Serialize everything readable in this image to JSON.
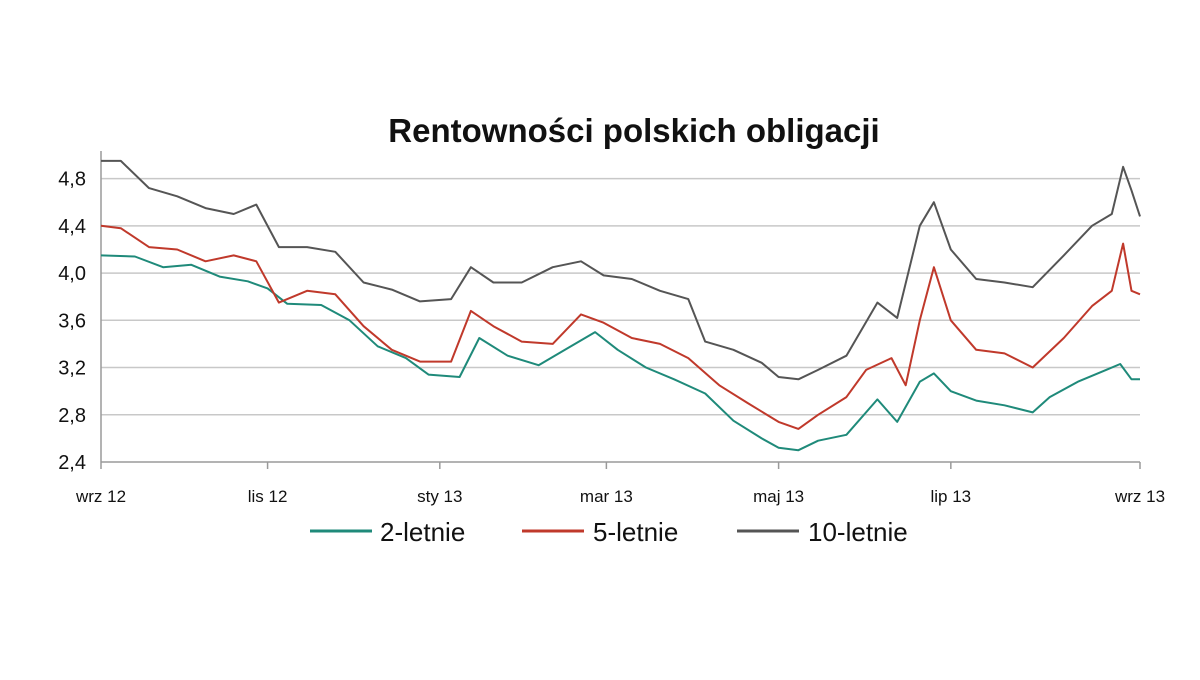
{
  "chart_data": {
    "type": "line",
    "title": "Rentowności polskich obligacji",
    "xlabel": "",
    "ylabel": "",
    "ylim": [
      2.4,
      5.0
    ],
    "yticks": [
      "2,4",
      "2,8",
      "3,2",
      "3,6",
      "4,0",
      "4,4",
      "4,8"
    ],
    "ytick_values": [
      2.4,
      2.8,
      3.2,
      3.6,
      4.0,
      4.4,
      4.8
    ],
    "xlim": [
      "2012-09-03",
      "2013-09-06"
    ],
    "xticks": [
      {
        "label": "wrz 12",
        "date": "2012-09-03"
      },
      {
        "label": "lis 12",
        "date": "2012-11-01"
      },
      {
        "label": "sty 13",
        "date": "2013-01-01"
      },
      {
        "label": "mar 13",
        "date": "2013-03-01"
      },
      {
        "label": "maj 13",
        "date": "2013-05-01"
      },
      {
        "label": "lip 13",
        "date": "2013-07-01"
      },
      {
        "label": "wrz 13",
        "date": "2013-09-06"
      }
    ],
    "grid": true,
    "legend_position": "bottom",
    "series": [
      {
        "name": "2-letnie",
        "color": "#1f8a7a",
        "points": [
          [
            "2012-09-03",
            4.15
          ],
          [
            "2012-09-15",
            4.14
          ],
          [
            "2012-09-25",
            4.05
          ],
          [
            "2012-10-05",
            4.07
          ],
          [
            "2012-10-15",
            3.97
          ],
          [
            "2012-10-25",
            3.93
          ],
          [
            "2012-11-01",
            3.87
          ],
          [
            "2012-11-08",
            3.74
          ],
          [
            "2012-11-20",
            3.73
          ],
          [
            "2012-11-30",
            3.6
          ],
          [
            "2012-12-10",
            3.38
          ],
          [
            "2012-12-20",
            3.28
          ],
          [
            "2012-12-28",
            3.14
          ],
          [
            "2013-01-08",
            3.12
          ],
          [
            "2013-01-15",
            3.45
          ],
          [
            "2013-01-25",
            3.3
          ],
          [
            "2013-02-05",
            3.22
          ],
          [
            "2013-02-15",
            3.36
          ],
          [
            "2013-02-25",
            3.5
          ],
          [
            "2013-03-05",
            3.35
          ],
          [
            "2013-03-15",
            3.2
          ],
          [
            "2013-03-25",
            3.1
          ],
          [
            "2013-04-05",
            2.98
          ],
          [
            "2013-04-15",
            2.75
          ],
          [
            "2013-04-25",
            2.6
          ],
          [
            "2013-05-01",
            2.52
          ],
          [
            "2013-05-08",
            2.5
          ],
          [
            "2013-05-15",
            2.58
          ],
          [
            "2013-05-25",
            2.63
          ],
          [
            "2013-06-05",
            2.93
          ],
          [
            "2013-06-12",
            2.74
          ],
          [
            "2013-06-20",
            3.08
          ],
          [
            "2013-06-25",
            3.15
          ],
          [
            "2013-07-01",
            3.0
          ],
          [
            "2013-07-10",
            2.92
          ],
          [
            "2013-07-20",
            2.88
          ],
          [
            "2013-07-30",
            2.82
          ],
          [
            "2013-08-05",
            2.95
          ],
          [
            "2013-08-15",
            3.08
          ],
          [
            "2013-08-25",
            3.18
          ],
          [
            "2013-08-30",
            3.23
          ],
          [
            "2013-09-03",
            3.1
          ],
          [
            "2013-09-06",
            3.1
          ]
        ]
      },
      {
        "name": "5-letnie",
        "color": "#c0392b",
        "points": [
          [
            "2012-09-03",
            4.4
          ],
          [
            "2012-09-10",
            4.38
          ],
          [
            "2012-09-20",
            4.22
          ],
          [
            "2012-09-30",
            4.2
          ],
          [
            "2012-10-10",
            4.1
          ],
          [
            "2012-10-20",
            4.15
          ],
          [
            "2012-10-28",
            4.1
          ],
          [
            "2012-11-05",
            3.75
          ],
          [
            "2012-11-15",
            3.85
          ],
          [
            "2012-11-25",
            3.82
          ],
          [
            "2012-12-05",
            3.55
          ],
          [
            "2012-12-15",
            3.35
          ],
          [
            "2012-12-25",
            3.25
          ],
          [
            "2013-01-05",
            3.25
          ],
          [
            "2013-01-12",
            3.68
          ],
          [
            "2013-01-20",
            3.55
          ],
          [
            "2013-01-30",
            3.42
          ],
          [
            "2013-02-10",
            3.4
          ],
          [
            "2013-02-20",
            3.65
          ],
          [
            "2013-02-28",
            3.58
          ],
          [
            "2013-03-10",
            3.45
          ],
          [
            "2013-03-20",
            3.4
          ],
          [
            "2013-03-30",
            3.28
          ],
          [
            "2013-04-10",
            3.05
          ],
          [
            "2013-04-20",
            2.9
          ],
          [
            "2013-05-01",
            2.74
          ],
          [
            "2013-05-08",
            2.68
          ],
          [
            "2013-05-15",
            2.8
          ],
          [
            "2013-05-25",
            2.95
          ],
          [
            "2013-06-01",
            3.18
          ],
          [
            "2013-06-10",
            3.28
          ],
          [
            "2013-06-15",
            3.05
          ],
          [
            "2013-06-20",
            3.6
          ],
          [
            "2013-06-25",
            4.05
          ],
          [
            "2013-07-01",
            3.6
          ],
          [
            "2013-07-10",
            3.35
          ],
          [
            "2013-07-20",
            3.32
          ],
          [
            "2013-07-30",
            3.2
          ],
          [
            "2013-08-10",
            3.45
          ],
          [
            "2013-08-20",
            3.72
          ],
          [
            "2013-08-27",
            3.85
          ],
          [
            "2013-08-31",
            4.25
          ],
          [
            "2013-09-03",
            3.85
          ],
          [
            "2013-09-06",
            3.82
          ]
        ]
      },
      {
        "name": "10-letnie",
        "color": "#555555",
        "points": [
          [
            "2012-09-03",
            4.95
          ],
          [
            "2012-09-10",
            4.95
          ],
          [
            "2012-09-20",
            4.72
          ],
          [
            "2012-09-30",
            4.65
          ],
          [
            "2012-10-10",
            4.55
          ],
          [
            "2012-10-20",
            4.5
          ],
          [
            "2012-10-28",
            4.58
          ],
          [
            "2012-11-05",
            4.22
          ],
          [
            "2012-11-15",
            4.22
          ],
          [
            "2012-11-25",
            4.18
          ],
          [
            "2012-12-05",
            3.92
          ],
          [
            "2012-12-15",
            3.86
          ],
          [
            "2012-12-25",
            3.76
          ],
          [
            "2013-01-05",
            3.78
          ],
          [
            "2013-01-12",
            4.05
          ],
          [
            "2013-01-20",
            3.92
          ],
          [
            "2013-01-30",
            3.92
          ],
          [
            "2013-02-10",
            4.05
          ],
          [
            "2013-02-20",
            4.1
          ],
          [
            "2013-02-28",
            3.98
          ],
          [
            "2013-03-10",
            3.95
          ],
          [
            "2013-03-20",
            3.85
          ],
          [
            "2013-03-30",
            3.78
          ],
          [
            "2013-04-05",
            3.42
          ],
          [
            "2013-04-15",
            3.35
          ],
          [
            "2013-04-25",
            3.24
          ],
          [
            "2013-05-01",
            3.12
          ],
          [
            "2013-05-08",
            3.1
          ],
          [
            "2013-05-15",
            3.18
          ],
          [
            "2013-05-25",
            3.3
          ],
          [
            "2013-06-05",
            3.75
          ],
          [
            "2013-06-12",
            3.62
          ],
          [
            "2013-06-20",
            4.4
          ],
          [
            "2013-06-25",
            4.6
          ],
          [
            "2013-07-01",
            4.2
          ],
          [
            "2013-07-10",
            3.95
          ],
          [
            "2013-07-20",
            3.92
          ],
          [
            "2013-07-30",
            3.88
          ],
          [
            "2013-08-10",
            4.15
          ],
          [
            "2013-08-20",
            4.4
          ],
          [
            "2013-08-27",
            4.5
          ],
          [
            "2013-08-31",
            4.9
          ],
          [
            "2013-09-03",
            4.7
          ],
          [
            "2013-09-06",
            4.48
          ]
        ]
      }
    ]
  }
}
